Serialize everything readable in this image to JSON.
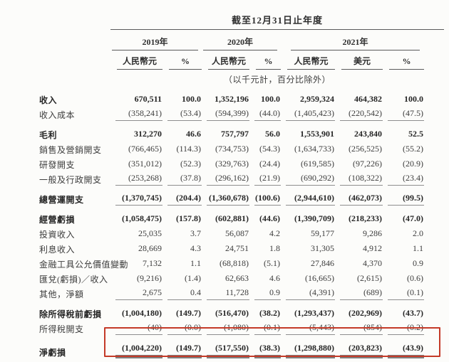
{
  "page": {
    "background": "#fcfcfa"
  },
  "table": {
    "title": "截至12月31日止年度",
    "years": [
      {
        "label": "2019年"
      },
      {
        "label": "2020年"
      },
      {
        "label": "2021年"
      }
    ],
    "columns": [
      "人民幣元",
      "%",
      "人民幣元",
      "%",
      "人民幣元",
      "美元",
      "%"
    ],
    "unit_note": "（以千元計，百分比除外）",
    "highlight_color": "#c43a28",
    "rows": [
      {
        "label": "收入",
        "bold": true,
        "values": [
          "670,511",
          "100.0",
          "1,352,196",
          "100.0",
          "2,959,324",
          "464,382",
          "100.0"
        ]
      },
      {
        "label": "收入成本",
        "underline": "single",
        "values": [
          "(358,241)",
          "(53.4)",
          "(594,399)",
          "(44.0)",
          "(1,405,423)",
          "(220,542)",
          "(47.5)"
        ]
      },
      {
        "label": "毛利",
        "bold": true,
        "gap": true,
        "values": [
          "312,270",
          "46.6",
          "757,797",
          "56.0",
          "1,553,901",
          "243,840",
          "52.5"
        ]
      },
      {
        "label": "銷售及營銷開支",
        "values": [
          "(766,465)",
          "(114.3)",
          "(734,753)",
          "(54.3)",
          "(1,634,733)",
          "(256,525)",
          "(55.2)"
        ]
      },
      {
        "label": "研發開支",
        "values": [
          "(351,012)",
          "(52.3)",
          "(329,763)",
          "(24.4)",
          "(619,585)",
          "(97,226)",
          "(20.9)"
        ]
      },
      {
        "label": "一般及行政開支",
        "underline": "single",
        "values": [
          "(253,268)",
          "(37.8)",
          "(296,162)",
          "(21.9)",
          "(690,292)",
          "(108,322)",
          "(23.4)"
        ]
      },
      {
        "label": "總營運開支",
        "bold": true,
        "underline": "single",
        "gap": true,
        "values": [
          "(1,370,745)",
          "(204.4)",
          "(1,360,678)",
          "(100.6)",
          "(2,944,610)",
          "(462,073)",
          "(99.5)"
        ]
      },
      {
        "label": "經營虧損",
        "bold": true,
        "gap": true,
        "values": [
          "(1,058,475)",
          "(157.8)",
          "(602,881)",
          "(44.6)",
          "(1,390,709)",
          "(218,233)",
          "(47.0)"
        ]
      },
      {
        "label": "投資收入",
        "values": [
          "25,035",
          "3.7",
          "56,087",
          "4.2",
          "59,177",
          "9,286",
          "2.0"
        ]
      },
      {
        "label": "利息收入",
        "values": [
          "28,669",
          "4.3",
          "24,751",
          "1.8",
          "31,305",
          "4,912",
          "1.1"
        ]
      },
      {
        "label": "金融工具公允價值變動",
        "values": [
          "7,132",
          "1.1",
          "(68,818)",
          "(5.1)",
          "27,846",
          "4,370",
          "0.9"
        ]
      },
      {
        "label": "匯兌(虧損)／收入",
        "values": [
          "(9,216)",
          "(1.4)",
          "62,663",
          "4.6",
          "(16,665)",
          "(2,615)",
          "(0.6)"
        ]
      },
      {
        "label": "其他，淨額",
        "underline": "single",
        "values": [
          "2,675",
          "0.4",
          "11,728",
          "0.9",
          "(4,391)",
          "(689)",
          "(0.1)"
        ]
      },
      {
        "label": "除所得稅前虧損",
        "bold": true,
        "gap": true,
        "values": [
          "(1,004,180)",
          "(149.7)",
          "(516,470)",
          "(38.2)",
          "(1,293,437)",
          "(202,969)",
          "(43.7)"
        ]
      },
      {
        "label": "所得稅開支",
        "underline": "single",
        "values": [
          "(40)",
          "(0.0)",
          "(1,080)",
          "(0.1)",
          "(5,443)",
          "(854)",
          "(0.2)"
        ]
      },
      {
        "label": "淨虧損",
        "bold": true,
        "underline": "double",
        "gap_lg": true,
        "highlighted": true,
        "values": [
          "(1,004,220)",
          "(149.7)",
          "(517,550)",
          "(38.3)",
          "(1,298,880)",
          "(203,823)",
          "(43.9)"
        ]
      }
    ]
  }
}
